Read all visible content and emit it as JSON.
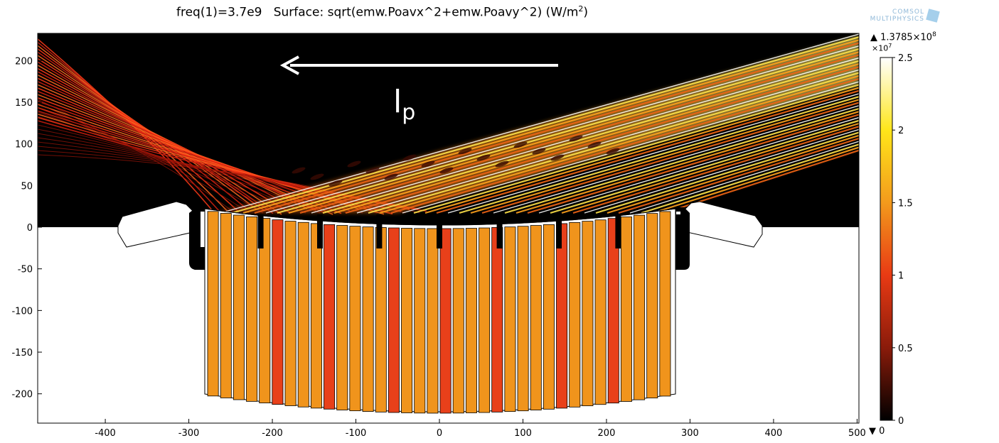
{
  "chart_data": {
    "type": "heatmap",
    "title_parts": {
      "freq": "freq(1)=3.7e9",
      "surface": "Surface: sqrt(emw.Poavx^2+emw.Poavy^2) (W/m",
      "sup": "2",
      "close": ")"
    },
    "x_ticks": [
      "-400",
      "-300",
      "-200",
      "-100",
      "0",
      "100",
      "200",
      "300",
      "400",
      "500"
    ],
    "x_tick_values": [
      -400,
      -300,
      -200,
      -100,
      0,
      100,
      200,
      300,
      400,
      500
    ],
    "y_ticks": [
      "200",
      "150",
      "100",
      "50",
      "0",
      "-50",
      "-100",
      "-150",
      "-200"
    ],
    "y_tick_values": [
      200,
      150,
      100,
      50,
      0,
      -50,
      -100,
      -150,
      -200
    ],
    "xlim": [
      -480,
      500
    ],
    "ylim": [
      -235,
      232
    ],
    "colorbar": {
      "max_label": "1.3785×10",
      "max_sup": "8",
      "multiplier": "×10",
      "multiplier_sup": "7",
      "min_label": "0",
      "ticks": [
        "2.5",
        "2",
        "1.5",
        "1",
        "0.5",
        "0"
      ],
      "tick_values": [
        2.5,
        2,
        1.5,
        1,
        0.5,
        0
      ],
      "range": [
        0,
        2.5
      ],
      "colormap": "heat (black-red-orange-yellow-white)"
    },
    "annotation": {
      "label": "l",
      "subscript": "p",
      "arrow": "leftward"
    },
    "scene": {
      "incident_beam": "right side, traveling up-right from surface toward x=500,y~180",
      "reflected_rays": "left side, many thin red lines fanning up-left from surface",
      "absorber_bars": 36,
      "inner_teeth": 8
    }
  },
  "logo": {
    "line1": "COMSOL",
    "line2": "MULTIPHYSICS"
  },
  "colors": {
    "background": "#000000",
    "axis": "#000000",
    "arrow": "#ffffff",
    "bar_orange": "#f0941c",
    "bar_red": "#e8401a"
  }
}
